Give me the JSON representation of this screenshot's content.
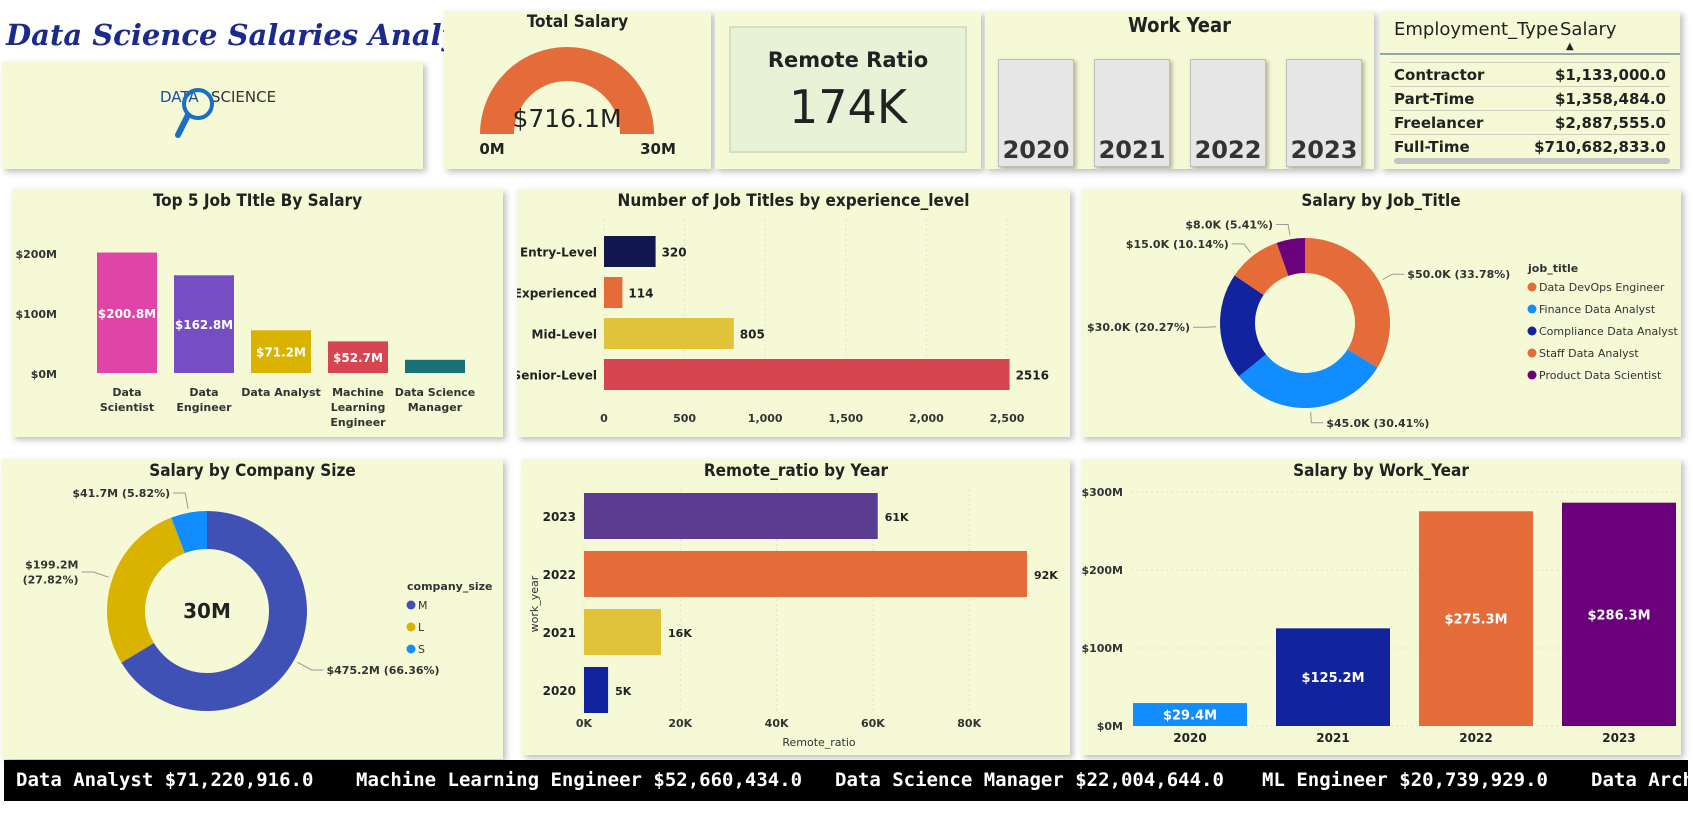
{
  "title": "Data Science Salaries Analysis",
  "logo_text": {
    "left": "DATA",
    "right": "SCIENCE"
  },
  "total_salary": {
    "title": "Total Salary",
    "value": "$716.1M",
    "min_label": "0M",
    "max_label": "30M",
    "colors": {
      "arc": "#e46c3a",
      "track": "#e6e6e6"
    }
  },
  "remote_ratio": {
    "title": "Remote Ratio",
    "value": "174K"
  },
  "work_year": {
    "title": "Work Year",
    "years": [
      "2020",
      "2021",
      "2022",
      "2023"
    ]
  },
  "employment_table": {
    "headers": [
      "Employment_Type",
      "Salary"
    ],
    "rows": [
      {
        "type": "Contractor",
        "salary": "$1,133,000.0"
      },
      {
        "type": "Part-Time",
        "salary": "$1,358,484.0"
      },
      {
        "type": "Freelancer",
        "salary": "$2,887,555.0"
      },
      {
        "type": "Full-Time",
        "salary": "$710,682,833.0"
      }
    ]
  },
  "chart_data": [
    {
      "id": "top5",
      "type": "bar",
      "title": "Top 5 Job TItle By Salary",
      "categories": [
        [
          "Data",
          "Scientist"
        ],
        [
          "Data",
          "Engineer"
        ],
        [
          "Data Analyst"
        ],
        [
          "Machine",
          "Learning",
          "Engineer"
        ],
        [
          "Data Science",
          "Manager"
        ]
      ],
      "values": [
        200.8,
        162.8,
        71.2,
        52.7,
        22.0
      ],
      "data_labels": [
        "$200.8M",
        "$162.8M",
        "$71.2M",
        "$52.7M",
        ""
      ],
      "colors": [
        "#e044a7",
        "#744ec2",
        "#d9b300",
        "#d64550",
        "#197278"
      ],
      "ylim": [
        0,
        200
      ],
      "yticks": [
        {
          "v": 0,
          "label": "$0M"
        },
        {
          "v": 100,
          "label": "$100M"
        },
        {
          "v": 200,
          "label": "$200M"
        }
      ]
    },
    {
      "id": "exp",
      "type": "bar",
      "orientation": "horizontal",
      "title": "Number of Job Titles by experience_level",
      "categories": [
        "Entry-Level",
        "Experienced",
        "Mid-Level",
        "Senior-Level"
      ],
      "values": [
        320,
        114,
        805,
        2516
      ],
      "colors": [
        "#12174f",
        "#e46c3a",
        "#e0c33a",
        "#d64550"
      ],
      "xlim": [
        0,
        2500
      ],
      "xticks": [
        {
          "v": 0,
          "label": "0"
        },
        {
          "v": 500,
          "label": "500"
        },
        {
          "v": 1000,
          "label": "1,000"
        },
        {
          "v": 1500,
          "label": "1,500"
        },
        {
          "v": 2000,
          "label": "2,000"
        },
        {
          "v": 2500,
          "label": "2,500"
        }
      ]
    },
    {
      "id": "jobtitle",
      "type": "pie",
      "donut": true,
      "title": "Salary by Job_Title",
      "legend_title": "job_title",
      "slices": [
        {
          "name": "Data DevOps Engineer",
          "value": 50.0,
          "pct": 33.78,
          "label": "$50.0K (33.78%)",
          "color": "#e46c3a"
        },
        {
          "name": "Finance Data Analyst",
          "value": 45.0,
          "pct": 30.41,
          "label": "$45.0K (30.41%)",
          "color": "#118dff"
        },
        {
          "name": "Compliance Data Analyst",
          "value": 30.0,
          "pct": 20.27,
          "label": "$30.0K (20.27%)",
          "color": "#12239e"
        },
        {
          "name": "Staff Data Analyst",
          "value": 15.0,
          "pct": 10.14,
          "label": "$15.0K (10.14%)",
          "color": "#e66c37"
        },
        {
          "name": "Product Data Scientist",
          "value": 8.0,
          "pct": 5.41,
          "label": "$8.0K (5.41%)",
          "color": "#6b007b"
        }
      ]
    },
    {
      "id": "company",
      "type": "pie",
      "donut": true,
      "title": "Salary by Company Size",
      "center_label": "30M",
      "legend_title": "company_size",
      "slices": [
        {
          "name": "M",
          "value": 475.2,
          "pct": 66.36,
          "label": "$475.2M (66.36%)",
          "color": "#4051b5"
        },
        {
          "name": "L",
          "value": 199.2,
          "pct": 27.82,
          "label": "$199.2M (27.82%)",
          "label_lines": [
            "$199.2M",
            "(27.82%)"
          ],
          "color": "#d9b300"
        },
        {
          "name": "S",
          "value": 41.7,
          "pct": 5.82,
          "label": "$41.7M (5.82%)",
          "color": "#118dff"
        }
      ]
    },
    {
      "id": "remote",
      "type": "bar",
      "orientation": "horizontal",
      "title": "Remote_ratio by Year",
      "categories": [
        "2023",
        "2022",
        "2021",
        "2020"
      ],
      "values": [
        61,
        92,
        16,
        5
      ],
      "data_labels": [
        "61K",
        "92K",
        "16K",
        "5K"
      ],
      "colors": [
        "#5a3d91",
        "#e46c3a",
        "#e0c33a",
        "#12239e"
      ],
      "xlim": [
        0,
        92
      ],
      "xticks": [
        {
          "v": 0,
          "label": "0K"
        },
        {
          "v": 20,
          "label": "20K"
        },
        {
          "v": 40,
          "label": "40K"
        },
        {
          "v": 60,
          "label": "60K"
        },
        {
          "v": 80,
          "label": "80K"
        }
      ],
      "xlabel": "Remote_ratio",
      "ylabel": "work_year"
    },
    {
      "id": "workyear",
      "type": "bar",
      "title": "Salary by Work_Year",
      "categories": [
        "2020",
        "2021",
        "2022",
        "2023"
      ],
      "values": [
        29.4,
        125.2,
        275.3,
        286.3
      ],
      "data_labels": [
        "$29.4M",
        "$125.2M",
        "$275.3M",
        "$286.3M"
      ],
      "colors": [
        "#118dff",
        "#12239e",
        "#e46c3a",
        "#6b007b"
      ],
      "ylim": [
        0,
        300
      ],
      "yticks": [
        {
          "v": 0,
          "label": "$0M"
        },
        {
          "v": 100,
          "label": "$100M"
        },
        {
          "v": 200,
          "label": "$200M"
        },
        {
          "v": 300,
          "label": "$300M"
        }
      ]
    }
  ],
  "ticker": [
    "Data Analyst $71,220,916.0",
    "Machine Learning Engineer $52,660,434.0",
    "Data Science Manager $22,004,644.0",
    "ML Engineer $20,739,929.0",
    "Data Arch"
  ]
}
